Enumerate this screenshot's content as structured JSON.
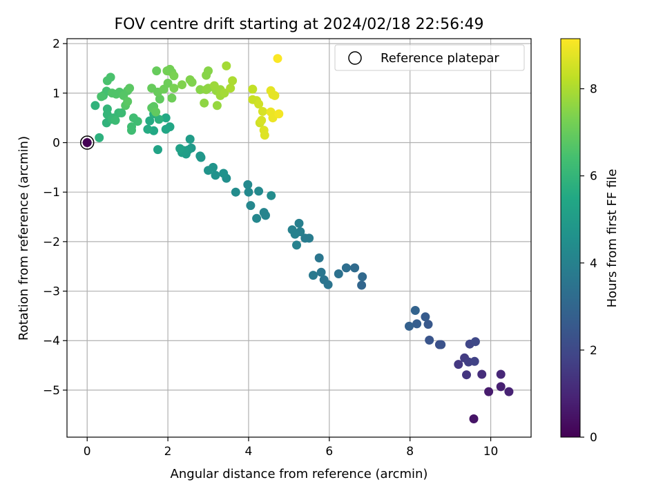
{
  "chart_data": {
    "type": "scatter",
    "title": "FOV centre drift starting at 2024/02/18 22:56:49",
    "xlabel": "Angular distance from reference (arcmin)",
    "ylabel": "Rotation from reference (arcmin)",
    "xlim": [
      -0.5,
      11.0
    ],
    "ylim": [
      -5.95,
      2.1
    ],
    "xticks": [
      0,
      2,
      4,
      6,
      8,
      10
    ],
    "yticks": [
      -5,
      -4,
      -3,
      -2,
      -1,
      0,
      1,
      2
    ],
    "xtick_labels": [
      "0",
      "2",
      "4",
      "6",
      "8",
      "10"
    ],
    "ytick_labels": [
      "−5",
      "−4",
      "−3",
      "−2",
      "−1",
      "0",
      "1",
      "2"
    ],
    "grid": true,
    "legend": {
      "placement": "top-right",
      "entries": [
        "Reference platepar"
      ]
    },
    "reference_point": {
      "x": 0,
      "y": 0
    },
    "colorbar": {
      "label": "Hours from first FF file",
      "colormap": "viridis",
      "range": [
        0,
        9.15
      ],
      "ticks": [
        0,
        2,
        4,
        6,
        8
      ],
      "tick_labels": [
        "0",
        "2",
        "4",
        "6",
        "8"
      ]
    },
    "series": [
      {
        "values_note_color_is_hours": true,
        "points": [
          [
            0.0,
            0.0,
            0.0
          ],
          [
            9.58,
            -5.58,
            0.5
          ],
          [
            9.95,
            -5.03,
            0.7
          ],
          [
            10.25,
            -4.93,
            0.8
          ],
          [
            10.45,
            -5.03,
            0.9
          ],
          [
            10.25,
            -4.68,
            1.0
          ],
          [
            9.78,
            -4.68,
            1.2
          ],
          [
            9.4,
            -4.69,
            1.4
          ],
          [
            9.2,
            -4.48,
            1.5
          ],
          [
            9.35,
            -4.35,
            1.6
          ],
          [
            9.45,
            -4.43,
            1.7
          ],
          [
            9.6,
            -4.42,
            1.8
          ],
          [
            9.48,
            -4.07,
            1.9
          ],
          [
            9.62,
            -4.02,
            2.0
          ],
          [
            8.73,
            -4.08,
            2.2
          ],
          [
            8.77,
            -4.08,
            2.3
          ],
          [
            8.48,
            -3.99,
            2.4
          ],
          [
            8.45,
            -3.67,
            2.5
          ],
          [
            8.38,
            -3.52,
            2.6
          ],
          [
            8.17,
            -3.66,
            2.7
          ],
          [
            7.98,
            -3.71,
            2.8
          ],
          [
            8.13,
            -3.39,
            2.9
          ],
          [
            6.8,
            -2.88,
            3.0
          ],
          [
            6.82,
            -2.71,
            3.1
          ],
          [
            6.63,
            -2.53,
            3.2
          ],
          [
            6.42,
            -2.53,
            3.3
          ],
          [
            6.23,
            -2.65,
            3.4
          ],
          [
            5.97,
            -2.87,
            3.5
          ],
          [
            5.87,
            -2.77,
            3.5
          ],
          [
            5.8,
            -2.62,
            3.6
          ],
          [
            5.75,
            -2.33,
            3.6
          ],
          [
            5.6,
            -2.68,
            3.7
          ],
          [
            5.5,
            -1.93,
            3.8
          ],
          [
            5.4,
            -1.93,
            3.8
          ],
          [
            5.25,
            -1.63,
            3.9
          ],
          [
            5.28,
            -1.8,
            3.9
          ],
          [
            5.19,
            -2.07,
            4.0
          ],
          [
            5.15,
            -1.85,
            4.0
          ],
          [
            5.08,
            -1.76,
            4.0
          ],
          [
            4.42,
            -1.47,
            4.1
          ],
          [
            4.38,
            -1.41,
            4.1
          ],
          [
            4.2,
            -1.53,
            4.2
          ],
          [
            4.05,
            -1.27,
            4.2
          ],
          [
            4.0,
            -1.0,
            4.3
          ],
          [
            3.98,
            -0.85,
            4.3
          ],
          [
            4.25,
            -0.98,
            4.3
          ],
          [
            4.56,
            -1.07,
            4.4
          ],
          [
            3.68,
            -1.0,
            4.4
          ],
          [
            3.45,
            -0.72,
            4.5
          ],
          [
            3.38,
            -0.62,
            4.6
          ],
          [
            3.18,
            -0.66,
            4.6
          ],
          [
            3.12,
            -0.5,
            4.7
          ],
          [
            3.0,
            -0.56,
            4.7
          ],
          [
            2.82,
            -0.3,
            4.8
          ],
          [
            2.8,
            -0.27,
            4.8
          ],
          [
            2.58,
            -0.11,
            4.9
          ],
          [
            2.55,
            0.07,
            5.0
          ],
          [
            2.5,
            -0.15,
            5.0
          ],
          [
            2.45,
            -0.23,
            5.0
          ],
          [
            2.4,
            -0.16,
            5.1
          ],
          [
            2.35,
            -0.2,
            5.1
          ],
          [
            2.3,
            -0.12,
            5.2
          ],
          [
            1.75,
            -0.14,
            5.3
          ],
          [
            2.05,
            0.32,
            5.4
          ],
          [
            1.95,
            0.27,
            5.4
          ],
          [
            1.95,
            0.5,
            5.5
          ],
          [
            1.65,
            0.24,
            5.5
          ],
          [
            1.5,
            0.27,
            5.6
          ],
          [
            1.55,
            0.44,
            5.6
          ],
          [
            1.65,
            0.58,
            5.7
          ],
          [
            1.78,
            0.47,
            5.8
          ],
          [
            0.3,
            0.1,
            5.8
          ],
          [
            0.2,
            0.75,
            5.9
          ],
          [
            0.48,
            0.4,
            5.9
          ],
          [
            0.5,
            0.57,
            6.0
          ],
          [
            0.5,
            0.68,
            6.0
          ],
          [
            0.65,
            0.5,
            6.1
          ],
          [
            0.62,
            0.47,
            6.1
          ],
          [
            0.78,
            0.6,
            6.1
          ],
          [
            0.85,
            0.6,
            6.2
          ],
          [
            0.7,
            0.45,
            6.2
          ],
          [
            1.1,
            0.25,
            6.3
          ],
          [
            1.1,
            0.32,
            6.3
          ],
          [
            1.25,
            0.43,
            6.3
          ],
          [
            1.15,
            0.5,
            6.3
          ],
          [
            0.4,
            0.95,
            6.4
          ],
          [
            0.48,
            1.04,
            6.4
          ],
          [
            0.5,
            1.25,
            6.5
          ],
          [
            0.58,
            1.32,
            6.5
          ],
          [
            0.35,
            0.93,
            6.5
          ],
          [
            0.62,
            1.0,
            6.6
          ],
          [
            0.72,
            0.98,
            6.6
          ],
          [
            0.8,
            1.02,
            6.6
          ],
          [
            0.9,
            0.95,
            6.7
          ],
          [
            0.95,
            0.75,
            6.7
          ],
          [
            1.0,
            1.05,
            6.7
          ],
          [
            1.05,
            1.1,
            6.8
          ],
          [
            1.0,
            0.83,
            6.8
          ],
          [
            1.6,
            0.7,
            6.8
          ],
          [
            1.65,
            0.73,
            6.8
          ],
          [
            1.7,
            0.62,
            6.9
          ],
          [
            1.8,
            0.88,
            6.9
          ],
          [
            1.75,
            1.02,
            7.0
          ],
          [
            1.6,
            1.1,
            7.0
          ],
          [
            1.72,
            1.45,
            7.0
          ],
          [
            1.9,
            1.08,
            7.1
          ],
          [
            2.0,
            1.2,
            7.1
          ],
          [
            2.1,
            0.9,
            7.1
          ],
          [
            1.98,
            1.45,
            7.2
          ],
          [
            2.05,
            1.48,
            7.2
          ],
          [
            2.1,
            1.42,
            7.2
          ],
          [
            2.15,
            1.35,
            7.3
          ],
          [
            2.15,
            1.1,
            7.3
          ],
          [
            2.35,
            1.17,
            7.4
          ],
          [
            2.55,
            1.27,
            7.4
          ],
          [
            2.6,
            1.22,
            7.4
          ],
          [
            2.8,
            1.07,
            7.5
          ],
          [
            2.95,
            1.36,
            7.5
          ],
          [
            3.0,
            1.45,
            7.5
          ],
          [
            2.95,
            1.07,
            7.6
          ],
          [
            3.0,
            1.1,
            7.6
          ],
          [
            2.9,
            0.8,
            7.6
          ],
          [
            3.2,
            1.05,
            7.7
          ],
          [
            3.22,
            0.75,
            7.7
          ],
          [
            3.15,
            1.15,
            7.8
          ],
          [
            3.3,
            1.07,
            7.8
          ],
          [
            3.3,
            0.95,
            7.8
          ],
          [
            3.4,
            1.0,
            7.9
          ],
          [
            3.45,
            1.55,
            7.9
          ],
          [
            3.55,
            1.1,
            8.0
          ],
          [
            3.6,
            1.25,
            8.0
          ],
          [
            4.1,
            1.08,
            8.3
          ],
          [
            4.1,
            0.87,
            8.4
          ],
          [
            4.2,
            0.85,
            8.4
          ],
          [
            4.25,
            0.78,
            8.5
          ],
          [
            4.28,
            0.4,
            8.5
          ],
          [
            4.32,
            0.45,
            8.6
          ],
          [
            4.35,
            0.63,
            8.6
          ],
          [
            4.38,
            0.25,
            8.7
          ],
          [
            4.4,
            0.15,
            8.7
          ],
          [
            4.55,
            1.05,
            8.8
          ],
          [
            4.6,
            0.97,
            8.8
          ],
          [
            4.65,
            0.95,
            8.8
          ],
          [
            4.55,
            0.62,
            8.9
          ],
          [
            4.6,
            0.5,
            8.9
          ],
          [
            4.75,
            0.58,
            9.0
          ],
          [
            4.72,
            1.7,
            9.1
          ]
        ]
      }
    ]
  }
}
